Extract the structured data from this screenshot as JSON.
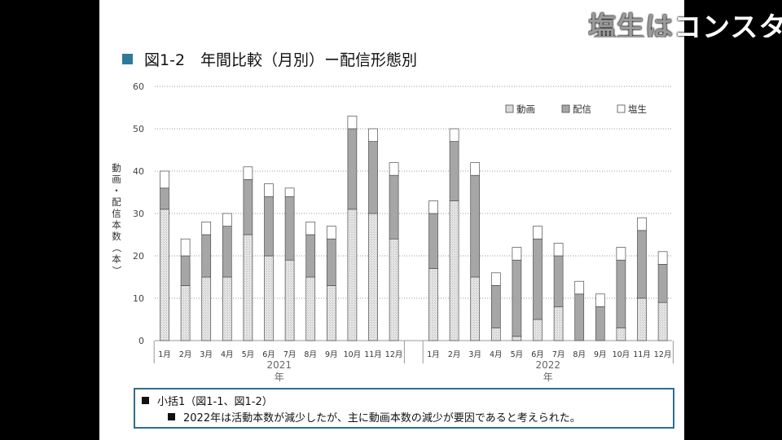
{
  "overlay": {
    "text_bright": "塩生はコンスタ",
    "text_dim": "塩生は"
  },
  "heading": {
    "text": "図1-2　年間比較（月別）ー配信形態別",
    "marker_color": "#2e7a9a"
  },
  "chart_data": {
    "type": "bar",
    "stacked": true,
    "title": "図1-2　年間比較（月別）ー配信形態別",
    "ylabel": "動画・配信本数（本）",
    "xlabel": "年",
    "ylim": [
      0,
      60
    ],
    "yticks": [
      0,
      10,
      20,
      30,
      40,
      50,
      60
    ],
    "grid": true,
    "legend_position": "top-right",
    "groups": [
      {
        "label": "2021",
        "year_suffix": "年",
        "categories": [
          "1月",
          "2月",
          "3月",
          "4月",
          "5月",
          "6月",
          "7月",
          "8月",
          "9月",
          "10月",
          "11月",
          "12月"
        ],
        "series": [
          {
            "name": "動画",
            "values": [
              31,
              13,
              15,
              15,
              25,
              20,
              19,
              15,
              13,
              31,
              30,
              24
            ]
          },
          {
            "name": "配信",
            "values": [
              5,
              7,
              10,
              12,
              13,
              14,
              15,
              10,
              11,
              19,
              17,
              15
            ]
          },
          {
            "name": "塩生",
            "values": [
              4,
              4,
              3,
              3,
              3,
              3,
              2,
              3,
              3,
              3,
              3,
              3
            ]
          }
        ]
      },
      {
        "label": "2022",
        "year_suffix": "年",
        "categories": [
          "1月",
          "2月",
          "3月",
          "4月",
          "5月",
          "6月",
          "7月",
          "8月",
          "9月",
          "10月",
          "11月",
          "12月"
        ],
        "series": [
          {
            "name": "動画",
            "values": [
              17,
              33,
              15,
              3,
              1,
              5,
              8,
              0,
              0,
              3,
              10,
              9
            ]
          },
          {
            "name": "配信",
            "values": [
              13,
              14,
              24,
              10,
              18,
              19,
              12,
              11,
              8,
              16,
              16,
              9
            ]
          },
          {
            "name": "塩生",
            "values": [
              3,
              3,
              3,
              3,
              3,
              3,
              3,
              3,
              3,
              3,
              3,
              3
            ]
          }
        ]
      }
    ],
    "legend": [
      {
        "name": "動画",
        "color": "#d9d9d9"
      },
      {
        "name": "配信",
        "color": "#a6a6a6"
      },
      {
        "name": "塩生",
        "color": "#ffffff"
      }
    ]
  },
  "summary": {
    "line1": "小括1（図1-1、図1-2）",
    "line2": "2022年は活動本数が減少したが、主に動画本数の減少が要因であると考えられた。"
  }
}
